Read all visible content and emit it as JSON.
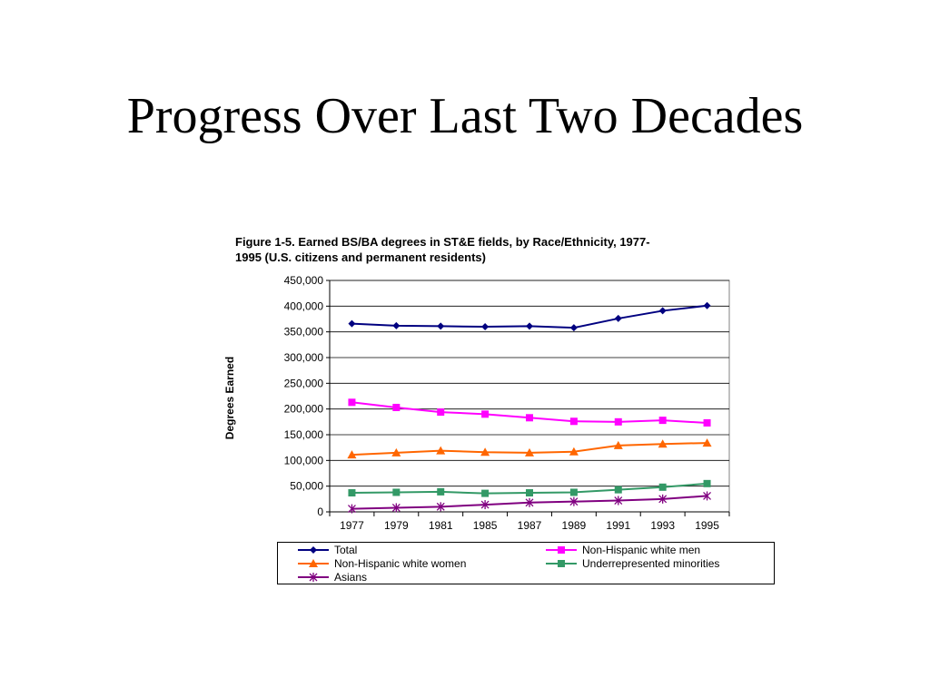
{
  "slide": {
    "title": "Progress Over Last Two Decades"
  },
  "chart_data": {
    "type": "line",
    "title": "Figure 1-5. Earned BS/BA degrees in ST&E fields, by Race/Ethnicity, 1977-1995 (U.S. citizens and permanent residents)",
    "title_lines": [
      "Figure 1-5. Earned BS/BA degrees in ST&E fields, by Race/Ethnicity, 1977-",
      "1995 (U.S. citizens and permanent residents)"
    ],
    "xlabel": "",
    "ylabel": "Degrees Earned",
    "categories": [
      "1977",
      "1979",
      "1981",
      "1985",
      "1987",
      "1989",
      "1991",
      "1993",
      "1995"
    ],
    "ylim": [
      0,
      450000
    ],
    "yticks": [
      0,
      50000,
      100000,
      150000,
      200000,
      250000,
      300000,
      350000,
      400000,
      450000
    ],
    "ytick_labels": [
      "0",
      "50,000",
      "100,000",
      "150,000",
      "200,000",
      "250,000",
      "300,000",
      "350,000",
      "400,000",
      "450,000"
    ],
    "grid": true,
    "legend_placement": "bottom",
    "series": [
      {
        "name": "Total",
        "color": "#000080",
        "marker": "diamond",
        "values": [
          366000,
          362000,
          361000,
          360000,
          361000,
          358000,
          376000,
          391000,
          401000
        ]
      },
      {
        "name": "Non-Hispanic white men",
        "color": "#ff00ff",
        "marker": "square",
        "values": [
          213000,
          203000,
          194000,
          190000,
          183000,
          176000,
          175000,
          178000,
          173000
        ]
      },
      {
        "name": "Non-Hispanic white women",
        "color": "#ff6600",
        "marker": "triangle",
        "values": [
          111000,
          115000,
          119000,
          116000,
          115000,
          117000,
          129000,
          132000,
          134000
        ]
      },
      {
        "name": "Underrepresented minorities",
        "color": "#339966",
        "marker": "square",
        "values": [
          37000,
          38000,
          39000,
          36000,
          37000,
          38000,
          43000,
          48000,
          55000
        ]
      },
      {
        "name": "Asians",
        "color": "#800080",
        "marker": "star",
        "values": [
          6000,
          8000,
          10000,
          14000,
          18000,
          20000,
          22000,
          25000,
          31000
        ]
      }
    ]
  }
}
